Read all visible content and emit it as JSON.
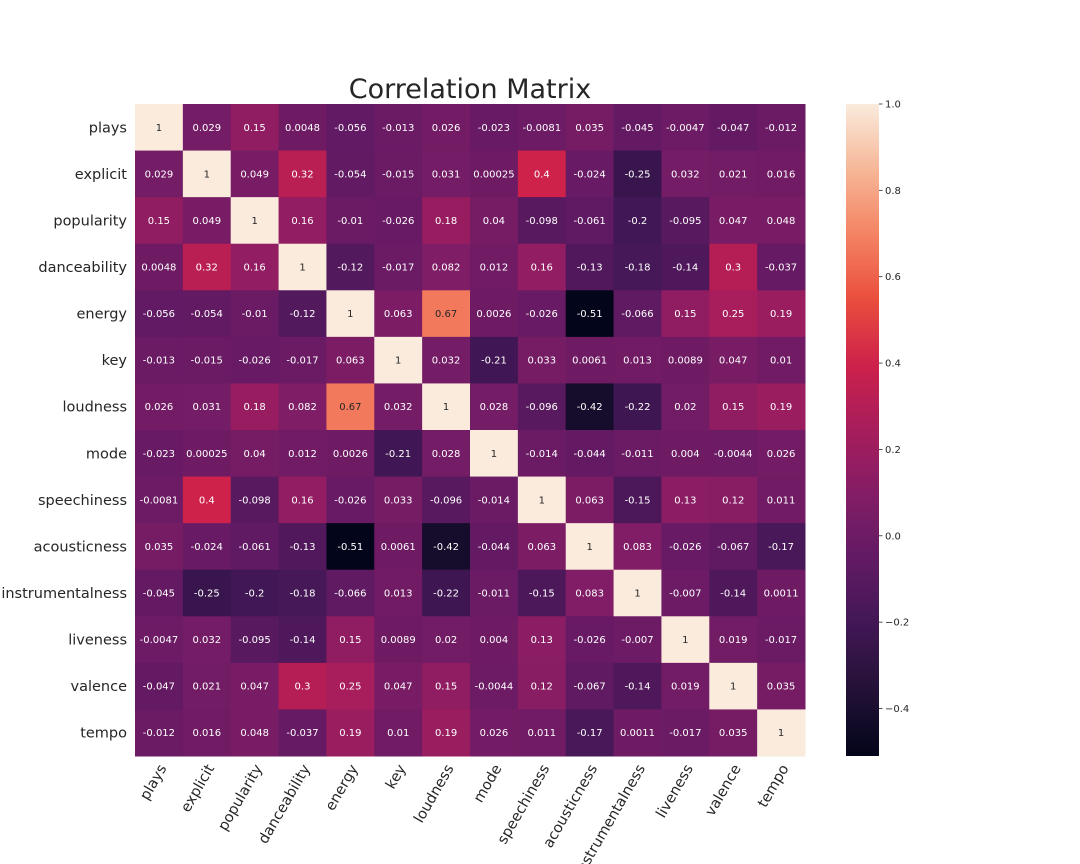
{
  "chart_data": {
    "type": "heatmap",
    "title": "Correlation Matrix",
    "labels": [
      "plays",
      "explicit",
      "popularity",
      "danceability",
      "energy",
      "key",
      "loudness",
      "mode",
      "speechiness",
      "acousticness",
      "instrumentalness",
      "liveness",
      "valence",
      "tempo"
    ],
    "values": [
      [
        "1",
        "0.029",
        "0.15",
        "0.0048",
        "-0.056",
        "-0.013",
        "0.026",
        "-0.023",
        "-0.0081",
        "0.035",
        "-0.045",
        "-0.0047",
        "-0.047",
        "-0.012"
      ],
      [
        "0.029",
        "1",
        "0.049",
        "0.32",
        "-0.054",
        "-0.015",
        "0.031",
        "0.00025",
        "0.4",
        "-0.024",
        "-0.25",
        "0.032",
        "0.021",
        "0.016"
      ],
      [
        "0.15",
        "0.049",
        "1",
        "0.16",
        "-0.01",
        "-0.026",
        "0.18",
        "0.04",
        "-0.098",
        "-0.061",
        "-0.2",
        "-0.095",
        "0.047",
        "0.048"
      ],
      [
        "0.0048",
        "0.32",
        "0.16",
        "1",
        "-0.12",
        "-0.017",
        "0.082",
        "0.012",
        "0.16",
        "-0.13",
        "-0.18",
        "-0.14",
        "0.3",
        "-0.037"
      ],
      [
        "-0.056",
        "-0.054",
        "-0.01",
        "-0.12",
        "1",
        "0.063",
        "0.67",
        "0.0026",
        "-0.026",
        "-0.51",
        "-0.066",
        "0.15",
        "0.25",
        "0.19"
      ],
      [
        "-0.013",
        "-0.015",
        "-0.026",
        "-0.017",
        "0.063",
        "1",
        "0.032",
        "-0.21",
        "0.033",
        "0.0061",
        "0.013",
        "0.0089",
        "0.047",
        "0.01"
      ],
      [
        "0.026",
        "0.031",
        "0.18",
        "0.082",
        "0.67",
        "0.032",
        "1",
        "0.028",
        "-0.096",
        "-0.42",
        "-0.22",
        "0.02",
        "0.15",
        "0.19"
      ],
      [
        "-0.023",
        "0.00025",
        "0.04",
        "0.012",
        "0.0026",
        "-0.21",
        "0.028",
        "1",
        "-0.014",
        "-0.044",
        "-0.011",
        "0.004",
        "-0.0044",
        "0.026"
      ],
      [
        "-0.0081",
        "0.4",
        "-0.098",
        "0.16",
        "-0.026",
        "0.033",
        "-0.096",
        "-0.014",
        "1",
        "0.063",
        "-0.15",
        "0.13",
        "0.12",
        "0.011"
      ],
      [
        "0.035",
        "-0.024",
        "-0.061",
        "-0.13",
        "-0.51",
        "0.0061",
        "-0.42",
        "-0.044",
        "0.063",
        "1",
        "0.083",
        "-0.026",
        "-0.067",
        "-0.17"
      ],
      [
        "-0.045",
        "-0.25",
        "-0.2",
        "-0.18",
        "-0.066",
        "0.013",
        "-0.22",
        "-0.011",
        "-0.15",
        "0.083",
        "1",
        "-0.007",
        "-0.14",
        "0.0011"
      ],
      [
        "-0.0047",
        "0.032",
        "-0.095",
        "-0.14",
        "0.15",
        "0.0089",
        "0.02",
        "0.004",
        "0.13",
        "-0.026",
        "-0.007",
        "1",
        "0.019",
        "-0.017"
      ],
      [
        "-0.047",
        "0.021",
        "0.047",
        "0.3",
        "0.25",
        "0.047",
        "0.15",
        "-0.0044",
        "0.12",
        "-0.067",
        "-0.14",
        "0.019",
        "1",
        "0.035"
      ],
      [
        "-0.012",
        "0.016",
        "0.048",
        "-0.037",
        "0.19",
        "0.01",
        "0.19",
        "0.026",
        "0.011",
        "-0.17",
        "0.0011",
        "-0.017",
        "0.035",
        "1"
      ]
    ],
    "colorbar": {
      "range": [
        -0.51,
        1.0
      ],
      "ticks": [
        "1.0",
        "0.8",
        "0.6",
        "0.4",
        "0.2",
        "0.0",
        "−0.2",
        "−0.4"
      ],
      "tick_values": [
        1.0,
        0.8,
        0.6,
        0.4,
        0.2,
        0.0,
        -0.2,
        -0.4
      ]
    },
    "colormap": "rocket",
    "grid": false
  }
}
